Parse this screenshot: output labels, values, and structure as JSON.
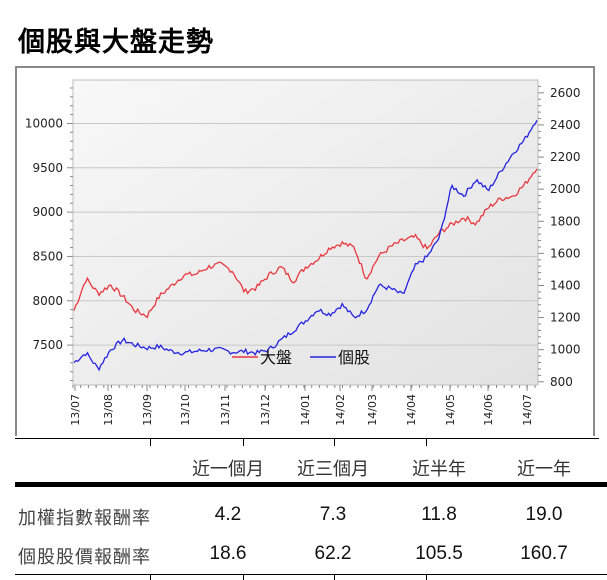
{
  "title": "個股與大盤走勢",
  "chart_data": {
    "type": "line",
    "title": "個股與大盤走勢",
    "xlabel": "",
    "ylabel_left": "大盤",
    "ylabel_right": "個股",
    "x_ticks": [
      "13/07",
      "13/08",
      "13/09",
      "13/10",
      "13/11",
      "13/12",
      "14/01",
      "14/02",
      "14/03",
      "14/04",
      "14/05",
      "14/06",
      "14/07"
    ],
    "y_left": {
      "ticks": [
        7500,
        8000,
        8500,
        9000,
        9500,
        10000
      ],
      "range": [
        7050,
        10490
      ]
    },
    "y_right": {
      "ticks": [
        800,
        1000,
        1200,
        1400,
        1600,
        1800,
        2000,
        2200,
        2400,
        2600
      ],
      "range": [
        780,
        2680
      ]
    },
    "grid": true,
    "legend": {
      "position": "inside-bottom-center",
      "entries": [
        "大盤",
        "個股"
      ]
    },
    "series": [
      {
        "name": "大盤",
        "axis": "left",
        "color": "#e8383d",
        "x": [
          "13/07",
          "13/07",
          "13/07",
          "13/08",
          "13/08",
          "13/08",
          "13/08",
          "13/09",
          "13/09",
          "13/09",
          "13/10",
          "13/10",
          "13/10",
          "13/11",
          "13/11",
          "13/11",
          "13/12",
          "13/12",
          "13/12",
          "14/01",
          "14/01",
          "14/01",
          "14/02",
          "14/02",
          "14/02",
          "14/03",
          "14/03",
          "14/03",
          "14/04",
          "14/04",
          "14/04",
          "14/05",
          "14/05",
          "14/05",
          "14/06",
          "14/06",
          "14/06",
          "14/07",
          "14/07"
        ],
        "values": [
          7890,
          8250,
          8080,
          8180,
          8050,
          7890,
          7830,
          8050,
          8170,
          8290,
          8300,
          8380,
          8410,
          8340,
          8100,
          8150,
          8290,
          8380,
          8220,
          8380,
          8470,
          8600,
          8650,
          8600,
          8250,
          8500,
          8610,
          8680,
          8720,
          8580,
          8770,
          8860,
          8940,
          8870,
          9050,
          9150,
          9180,
          9310,
          9510
        ]
      },
      {
        "name": "個股",
        "axis": "right",
        "color": "#2424e0",
        "x": [
          "13/07",
          "13/07",
          "13/07",
          "13/08",
          "13/08",
          "13/08",
          "13/08",
          "13/09",
          "13/09",
          "13/09",
          "13/10",
          "13/10",
          "13/10",
          "13/11",
          "13/11",
          "13/11",
          "13/12",
          "13/12",
          "13/12",
          "14/01",
          "14/01",
          "14/01",
          "14/02",
          "14/02",
          "14/02",
          "14/03",
          "14/03",
          "14/03",
          "14/04",
          "14/04",
          "14/04",
          "14/05",
          "14/05",
          "14/05",
          "14/06",
          "14/06",
          "14/06",
          "14/07",
          "14/07"
        ],
        "values": [
          920,
          980,
          880,
          1000,
          1060,
          1030,
          1010,
          1020,
          990,
          980,
          990,
          1000,
          1000,
          985,
          990,
          980,
          1000,
          1060,
          1120,
          1180,
          1250,
          1220,
          1280,
          1200,
          1250,
          1400,
          1380,
          1340,
          1520,
          1580,
          1700,
          2020,
          1960,
          2060,
          1990,
          2110,
          2220,
          2310,
          2440
        ]
      }
    ]
  },
  "legend": {
    "market_label": "大盤",
    "stock_label": "個股"
  },
  "axes": {
    "left_ticks": [
      "10000",
      "9500",
      "9000",
      "8500",
      "8000",
      "7500"
    ],
    "right_ticks": [
      "2600",
      "2400",
      "2200",
      "2000",
      "1800",
      "1600",
      "1400",
      "1200",
      "1000",
      "800"
    ],
    "x_ticks": [
      "13/07",
      "13/08",
      "13/09",
      "13/10",
      "13/11",
      "13/12",
      "14/01",
      "14/02",
      "14/03",
      "14/04",
      "14/05",
      "14/06",
      "14/07"
    ]
  },
  "table": {
    "headers": [
      "近一個月",
      "近三個月",
      "近半年",
      "近一年"
    ],
    "rows": [
      {
        "label": "加權指數報酬率",
        "values": [
          "4.2",
          "7.3",
          "11.8",
          "19.0"
        ]
      },
      {
        "label": "個股股價報酬率",
        "values": [
          "18.6",
          "62.2",
          "105.5",
          "160.7"
        ]
      }
    ]
  },
  "colors": {
    "market_line": "#e8383d",
    "stock_line": "#2424e0",
    "frame": "#8a8a8a",
    "plot_bg_top": "#f7f7f7",
    "plot_bg_bottom": "#e4e4e4"
  }
}
